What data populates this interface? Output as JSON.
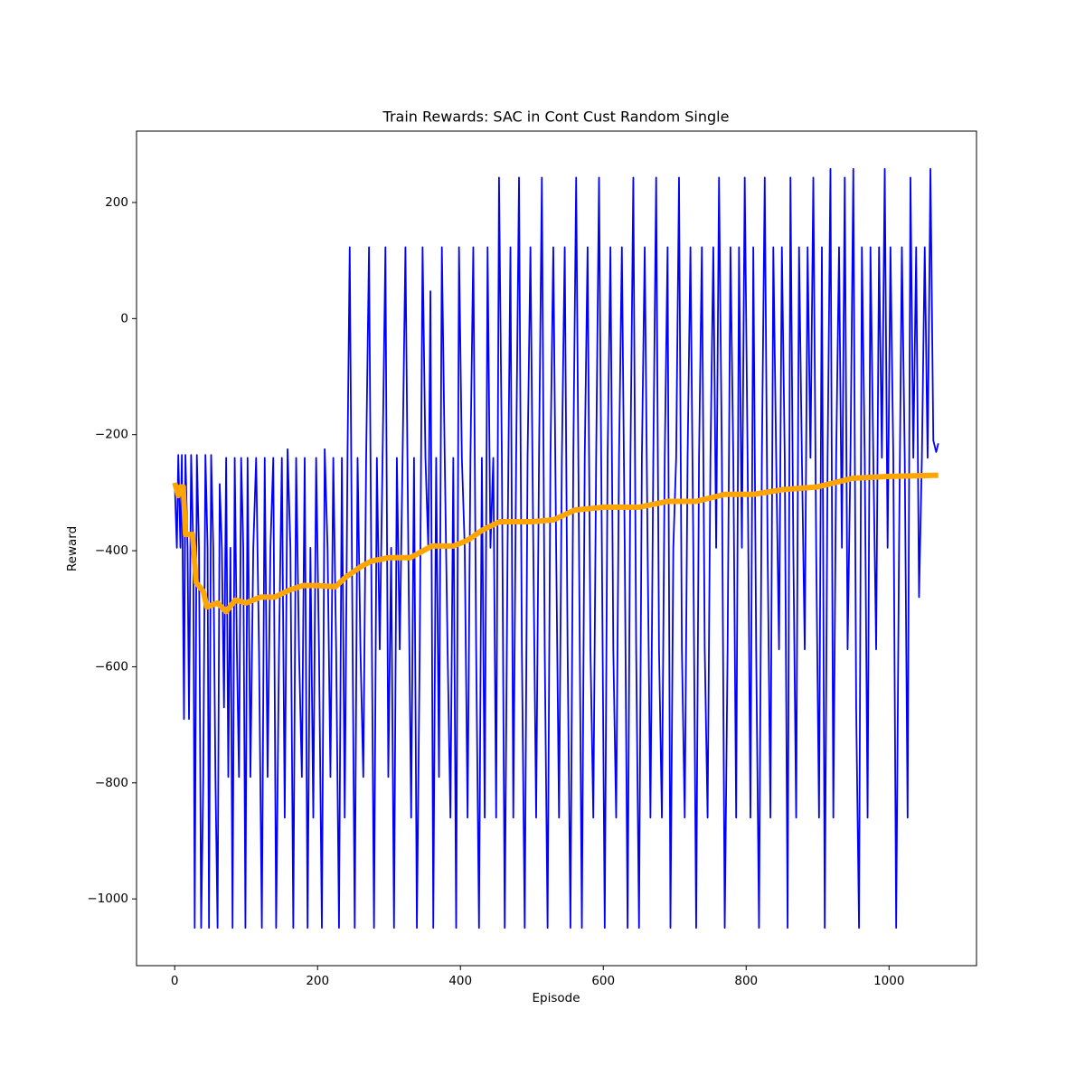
{
  "chart_data": {
    "type": "line",
    "title": "Train Rewards: SAC in Cont Cust Random Single",
    "xlabel": "Episode",
    "ylabel": "Reward",
    "xlim": [
      -53.45,
      1122.45
    ],
    "ylim": [
      -1115,
      323
    ],
    "xticks": [
      0,
      200,
      400,
      600,
      800,
      1000
    ],
    "yticks": [
      {
        "value": -1000,
        "label": "−1000"
      },
      {
        "value": -800,
        "label": "−800"
      },
      {
        "value": -600,
        "label": "−600"
      },
      {
        "value": -400,
        "label": "−400"
      },
      {
        "value": -200,
        "label": "−200"
      },
      0,
      200
    ],
    "series": [
      {
        "color": "#0000ff",
        "x": [
          0,
          3,
          5,
          8,
          10,
          13,
          15,
          18,
          20,
          23,
          26,
          28,
          31,
          34,
          37,
          40,
          43,
          46,
          48,
          51,
          54,
          57,
          60,
          63,
          66,
          69,
          72,
          75,
          78,
          81,
          84,
          87,
          90,
          93,
          96,
          99,
          102,
          106,
          110,
          114,
          118,
          122,
          126,
          130,
          134,
          138,
          142,
          146,
          150,
          154,
          158,
          162,
          166,
          170,
          174,
          178,
          182,
          186,
          190,
          194,
          198,
          202,
          206,
          210,
          214,
          218,
          222,
          226,
          230,
          234,
          238,
          242,
          245,
          248,
          252,
          256,
          260,
          264,
          268,
          272,
          275,
          279,
          283,
          287,
          291,
          295,
          299,
          303,
          307,
          311,
          315,
          319,
          323,
          327,
          331,
          335,
          339,
          343,
          347,
          351,
          355,
          358,
          362,
          366,
          370,
          374,
          378,
          382,
          386,
          390,
          394,
          398,
          402,
          406,
          410,
          414,
          418,
          422,
          426,
          430,
          434,
          438,
          442,
          446,
          450,
          454,
          458,
          462,
          466,
          470,
          474,
          478,
          482,
          486,
          490,
          494,
          498,
          502,
          506,
          510,
          514,
          518,
          522,
          526,
          530,
          534,
          538,
          542,
          546,
          550,
          554,
          558,
          562,
          566,
          570,
          574,
          578,
          582,
          586,
          590,
          594,
          598,
          602,
          606,
          610,
          614,
          618,
          622,
          626,
          630,
          634,
          638,
          642,
          646,
          650,
          654,
          658,
          662,
          666,
          670,
          674,
          678,
          682,
          686,
          690,
          694,
          698,
          702,
          706,
          710,
          714,
          718,
          722,
          726,
          730,
          734,
          738,
          742,
          746,
          750,
          754,
          758,
          762,
          766,
          770,
          774,
          778,
          782,
          786,
          790,
          794,
          798,
          802,
          806,
          810,
          814,
          818,
          822,
          826,
          830,
          834,
          838,
          842,
          846,
          850,
          854,
          858,
          862,
          866,
          870,
          874,
          878,
          882,
          886,
          890,
          894,
          898,
          902,
          906,
          910,
          914,
          918,
          922,
          926,
          930,
          934,
          938,
          942,
          946,
          950,
          954,
          958,
          962,
          966,
          970,
          974,
          978,
          982,
          986,
          990,
          994,
          998,
          1002,
          1006,
          1010,
          1014,
          1018,
          1022,
          1026,
          1030,
          1034,
          1038,
          1042,
          1046,
          1050,
          1054,
          1058,
          1062,
          1066,
          1069
        ],
        "values": [
          -283,
          -395,
          -235,
          -395,
          -235,
          -690,
          -235,
          -395,
          -690,
          -235,
          -395,
          -1050,
          -235,
          -395,
          -1050,
          -790,
          -235,
          -395,
          -1050,
          -235,
          -395,
          -790,
          -1050,
          -285,
          -395,
          -670,
          -240,
          -790,
          -395,
          -1050,
          -240,
          -570,
          -790,
          -240,
          -395,
          -1050,
          -240,
          -790,
          -395,
          -240,
          -570,
          -1050,
          -240,
          -790,
          -395,
          -240,
          -1050,
          -570,
          -240,
          -860,
          -225,
          -395,
          -1050,
          -240,
          -570,
          -790,
          -240,
          -1050,
          -395,
          -860,
          -240,
          -570,
          -1050,
          -225,
          -395,
          -790,
          -240,
          -570,
          -1050,
          -240,
          -860,
          -225,
          123,
          -395,
          -1050,
          -240,
          -570,
          -790,
          -240,
          123,
          -395,
          -1050,
          -240,
          -570,
          -240,
          123,
          -790,
          -395,
          -1050,
          -240,
          -570,
          -240,
          123,
          -395,
          -860,
          -240,
          -1050,
          -570,
          123,
          -240,
          -395,
          47,
          -1050,
          -240,
          -790,
          123,
          -240,
          -570,
          -860,
          -240,
          -1050,
          123,
          -240,
          -395,
          -860,
          -240,
          123,
          -570,
          -1050,
          -240,
          -860,
          123,
          -395,
          -240,
          -860,
          243,
          -240,
          -1050,
          -395,
          123,
          -860,
          -240,
          243,
          -570,
          -1050,
          -240,
          123,
          -395,
          -860,
          -240,
          243,
          -570,
          -1050,
          -240,
          123,
          -395,
          -860,
          -240,
          123,
          -570,
          -1050,
          -240,
          243,
          -395,
          -1050,
          -240,
          123,
          -570,
          -860,
          -240,
          243,
          -395,
          -1050,
          -240,
          123,
          -570,
          -860,
          -240,
          123,
          -395,
          -1050,
          -240,
          243,
          -570,
          -1050,
          -240,
          123,
          -395,
          -860,
          -240,
          243,
          -570,
          -860,
          -240,
          123,
          -1050,
          -395,
          -240,
          243,
          -570,
          -860,
          -240,
          123,
          -395,
          -1050,
          -240,
          123,
          -570,
          -860,
          -240,
          123,
          -395,
          243,
          -240,
          -1050,
          -570,
          123,
          -240,
          -860,
          123,
          -395,
          243,
          -240,
          -860,
          123,
          -570,
          -1050,
          -240,
          243,
          -395,
          -860,
          123,
          -240,
          -570,
          123,
          -240,
          -1050,
          243,
          -395,
          -860,
          123,
          -240,
          -570,
          123,
          -240,
          243,
          -395,
          -860,
          123,
          -1050,
          -240,
          258,
          -860,
          -240,
          123,
          -395,
          243,
          -570,
          -240,
          258,
          -670,
          -1050,
          123,
          -240,
          -860,
          123,
          -240,
          -570,
          123,
          -240,
          258,
          -395,
          123,
          -240,
          -1050,
          -395,
          123,
          -240,
          -860,
          243,
          -240,
          123,
          -480,
          -240,
          123,
          -240,
          258,
          -210,
          -230,
          -215
        ]
      },
      {
        "color": "#ffa500",
        "x": [
          0,
          5,
          8,
          12,
          15,
          25,
          30,
          40,
          45,
          60,
          72,
          85,
          100,
          120,
          140,
          160,
          180,
          200,
          225,
          240,
          260,
          275,
          300,
          330,
          360,
          390,
          410,
          430,
          455,
          500,
          530,
          560,
          600,
          650,
          690,
          730,
          770,
          810,
          850,
          900,
          950,
          1000,
          1069
        ],
        "values": [
          -283,
          -305,
          -290,
          -290,
          -372,
          -372,
          -455,
          -470,
          -497,
          -490,
          -505,
          -485,
          -490,
          -480,
          -480,
          -468,
          -460,
          -460,
          -462,
          -445,
          -428,
          -418,
          -412,
          -412,
          -392,
          -392,
          -382,
          -365,
          -350,
          -350,
          -347,
          -330,
          -325,
          -325,
          -315,
          -315,
          -303,
          -303,
          -295,
          -290,
          -275,
          -272,
          -270
        ]
      }
    ]
  }
}
